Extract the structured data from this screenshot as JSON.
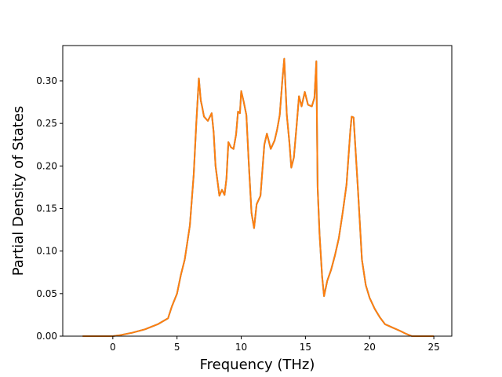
{
  "chart_data": {
    "type": "line",
    "title": "",
    "xlabel": "Frequency (THz)",
    "ylabel": "Partial Density of States",
    "xlim": [
      -3.9,
      26.4
    ],
    "ylim": [
      0.0,
      0.3415
    ],
    "xticks": [
      0,
      5,
      10,
      15,
      20,
      25
    ],
    "xtick_labels": [
      "0",
      "5",
      "10",
      "15",
      "20",
      "25"
    ],
    "yticks": [
      0.0,
      0.05,
      0.1,
      0.15,
      0.2,
      0.25,
      0.3
    ],
    "ytick_labels": [
      "0.00",
      "0.05",
      "0.10",
      "0.15",
      "0.20",
      "0.25",
      "0.30"
    ],
    "grid": false,
    "legend": "none",
    "series": [
      {
        "color": "#1f77b4",
        "x": [
          -2.35,
          -1,
          0,
          0.5,
          1.5,
          2.5,
          3.5,
          4.3,
          4.6,
          5.0,
          5.3,
          5.6,
          6.0,
          6.3,
          6.5,
          6.7,
          6.85,
          6.95,
          7.1,
          7.4,
          7.7,
          7.85,
          8.0,
          8.3,
          8.5,
          8.7,
          8.85,
          9.0,
          9.2,
          9.4,
          9.6,
          9.75,
          9.9,
          10.0,
          10.2,
          10.4,
          10.6,
          10.8,
          11.0,
          11.2,
          11.5,
          11.8,
          12.0,
          12.3,
          12.6,
          12.8,
          13.0,
          13.2,
          13.35,
          13.55,
          13.75,
          13.9,
          14.1,
          14.3,
          14.5,
          14.7,
          14.95,
          15.2,
          15.5,
          15.7,
          15.85,
          15.95,
          16.1,
          16.3,
          16.45,
          16.7,
          17.0,
          17.3,
          17.6,
          17.9,
          18.2,
          18.5,
          18.6,
          18.75,
          18.9,
          19.1,
          19.4,
          19.7,
          20.0,
          20.4,
          20.8,
          21.2,
          21.8,
          22.4,
          22.8,
          23.3,
          25.0
        ],
        "values": [
          0.0,
          0.0,
          0.0,
          0.001,
          0.004,
          0.008,
          0.014,
          0.021,
          0.035,
          0.05,
          0.072,
          0.09,
          0.13,
          0.19,
          0.25,
          0.303,
          0.277,
          0.27,
          0.258,
          0.253,
          0.262,
          0.24,
          0.2,
          0.165,
          0.172,
          0.166,
          0.185,
          0.228,
          0.222,
          0.22,
          0.237,
          0.264,
          0.262,
          0.288,
          0.275,
          0.26,
          0.2,
          0.145,
          0.127,
          0.155,
          0.165,
          0.225,
          0.238,
          0.22,
          0.23,
          0.243,
          0.26,
          0.3,
          0.326,
          0.26,
          0.228,
          0.198,
          0.21,
          0.245,
          0.282,
          0.27,
          0.287,
          0.272,
          0.27,
          0.28,
          0.323,
          0.175,
          0.12,
          0.07,
          0.047,
          0.065,
          0.078,
          0.095,
          0.115,
          0.145,
          0.178,
          0.242,
          0.258,
          0.257,
          0.22,
          0.17,
          0.09,
          0.06,
          0.045,
          0.032,
          0.022,
          0.014,
          0.01,
          0.006,
          0.003,
          0.0,
          0.0
        ]
      },
      {
        "color": "#ff7f0e",
        "x": [
          -2.35,
          -1,
          0,
          0.5,
          1.5,
          2.5,
          3.5,
          4.3,
          4.6,
          5.0,
          5.3,
          5.6,
          6.0,
          6.3,
          6.5,
          6.7,
          6.85,
          6.95,
          7.1,
          7.4,
          7.7,
          7.85,
          8.0,
          8.3,
          8.5,
          8.7,
          8.85,
          9.0,
          9.2,
          9.4,
          9.6,
          9.75,
          9.9,
          10.0,
          10.2,
          10.4,
          10.6,
          10.8,
          11.0,
          11.2,
          11.5,
          11.8,
          12.0,
          12.3,
          12.6,
          12.8,
          13.0,
          13.2,
          13.35,
          13.55,
          13.75,
          13.9,
          14.1,
          14.3,
          14.5,
          14.7,
          14.95,
          15.2,
          15.5,
          15.7,
          15.85,
          15.95,
          16.1,
          16.3,
          16.45,
          16.7,
          17.0,
          17.3,
          17.6,
          17.9,
          18.2,
          18.5,
          18.6,
          18.75,
          18.9,
          19.1,
          19.4,
          19.7,
          20.0,
          20.4,
          20.8,
          21.2,
          21.8,
          22.4,
          22.8,
          23.3,
          25.0
        ],
        "values": [
          0.0,
          0.0,
          0.0,
          0.001,
          0.004,
          0.008,
          0.014,
          0.021,
          0.035,
          0.05,
          0.072,
          0.09,
          0.13,
          0.19,
          0.25,
          0.303,
          0.277,
          0.27,
          0.258,
          0.253,
          0.262,
          0.24,
          0.2,
          0.165,
          0.172,
          0.166,
          0.185,
          0.228,
          0.222,
          0.22,
          0.237,
          0.264,
          0.262,
          0.288,
          0.275,
          0.26,
          0.2,
          0.145,
          0.127,
          0.155,
          0.165,
          0.225,
          0.238,
          0.22,
          0.23,
          0.243,
          0.26,
          0.3,
          0.326,
          0.26,
          0.228,
          0.198,
          0.21,
          0.245,
          0.282,
          0.27,
          0.287,
          0.272,
          0.27,
          0.28,
          0.323,
          0.175,
          0.12,
          0.07,
          0.047,
          0.065,
          0.078,
          0.095,
          0.115,
          0.145,
          0.178,
          0.242,
          0.258,
          0.257,
          0.22,
          0.17,
          0.09,
          0.06,
          0.045,
          0.032,
          0.022,
          0.014,
          0.01,
          0.006,
          0.003,
          0.0,
          0.0
        ]
      }
    ]
  }
}
